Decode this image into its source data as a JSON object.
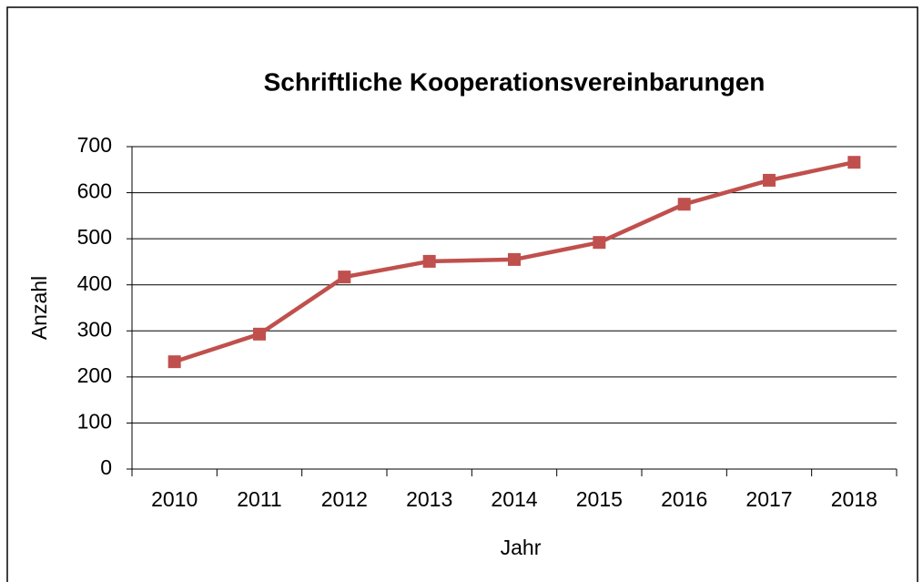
{
  "chart_data": {
    "type": "line",
    "title": "Schriftliche Kooperationsvereinbarungen",
    "x_label": "Jahr",
    "y_label": "Anzahl",
    "categories": [
      "2010",
      "2011",
      "2012",
      "2013",
      "2014",
      "2015",
      "2016",
      "2017",
      "2018"
    ],
    "values": [
      233,
      293,
      417,
      451,
      455,
      492,
      575,
      627,
      666
    ],
    "color": "#c0504d",
    "ylim": [
      0,
      700
    ],
    "yticks": [
      0,
      100,
      200,
      300,
      400,
      500,
      600,
      700
    ],
    "grid": true
  }
}
